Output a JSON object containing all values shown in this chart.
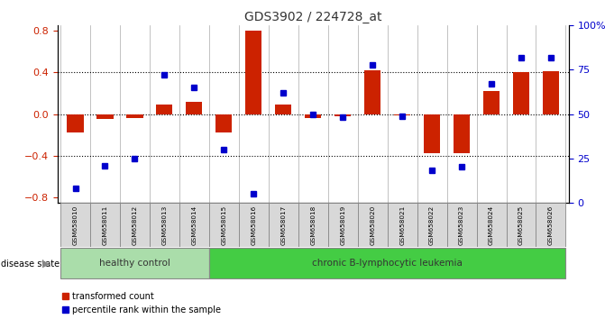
{
  "title": "GDS3902 / 224728_at",
  "samples": [
    "GSM658010",
    "GSM658011",
    "GSM658012",
    "GSM658013",
    "GSM658014",
    "GSM658015",
    "GSM658016",
    "GSM658017",
    "GSM658018",
    "GSM658019",
    "GSM658020",
    "GSM658021",
    "GSM658022",
    "GSM658023",
    "GSM658024",
    "GSM658025",
    "GSM658026"
  ],
  "transformed_count": [
    -0.18,
    -0.05,
    -0.04,
    0.09,
    0.12,
    -0.18,
    0.8,
    0.09,
    -0.04,
    -0.02,
    0.42,
    -0.01,
    -0.38,
    -0.38,
    0.22,
    0.4,
    0.41
  ],
  "percentile_rank": [
    8,
    21,
    25,
    72,
    65,
    30,
    5,
    62,
    50,
    48,
    78,
    49,
    18,
    20,
    67,
    82,
    82
  ],
  "group_labels": [
    "healthy control",
    "chronic B-lymphocytic leukemia"
  ],
  "healthy_count": 5,
  "bar_color": "#CC2200",
  "dot_color": "#0000CC",
  "healthy_color": "#AADDAA",
  "leukemia_color": "#44CC44",
  "ylim_left": [
    -0.85,
    0.85
  ],
  "ylim_right": [
    0,
    100
  ],
  "yticks_left": [
    -0.8,
    -0.4,
    0.0,
    0.4,
    0.8
  ],
  "yticks_right": [
    0,
    25,
    50,
    75,
    100
  ],
  "ytick_labels_right": [
    "0",
    "25",
    "50",
    "75",
    "100%"
  ],
  "hlines": [
    -0.4,
    0.0,
    0.4
  ],
  "legend_labels": [
    "transformed count",
    "percentile rank within the sample"
  ],
  "disease_state_label": "disease state",
  "background_color": "#FFFFFF"
}
